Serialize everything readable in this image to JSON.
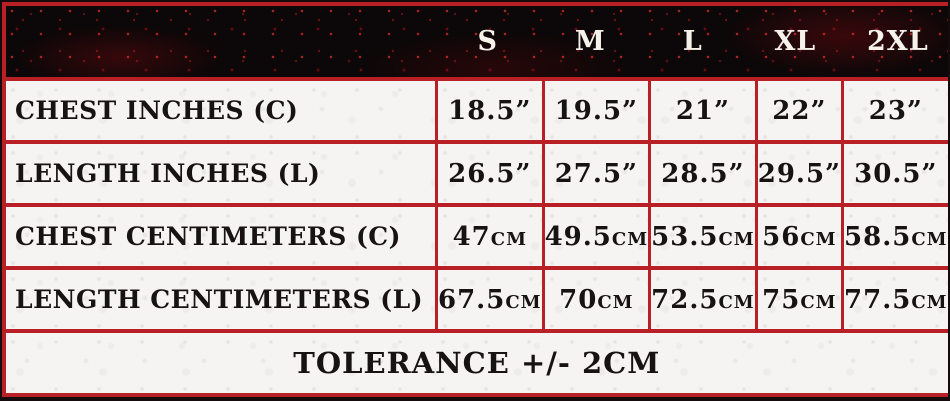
{
  "chart_data": {
    "type": "table",
    "title": "Apparel size chart",
    "columns": [
      "",
      "S",
      "M",
      "L",
      "XL",
      "2XL"
    ],
    "rows": [
      {
        "label": "CHEST INCHES (C)",
        "values": [
          "18.5”",
          "19.5”",
          "21”",
          "22”",
          "23”"
        ]
      },
      {
        "label": "LENGTH INCHES (L)",
        "values": [
          "26.5”",
          "27.5”",
          "28.5”",
          "29.5”",
          "30.5”"
        ]
      },
      {
        "label": "CHEST CENTIMETERS (C)",
        "values": [
          "47cm",
          "49.5cm",
          "53.5cm",
          "56cm",
          "58.5cm"
        ]
      },
      {
        "label": "LENGTH CENTIMETERS (L)",
        "values": [
          "67.5cm",
          "70cm",
          "72.5cm",
          "75cm",
          "77.5cm"
        ]
      }
    ],
    "footer": "TOLERANCE +/- 2CM"
  },
  "colors": {
    "border-red": "#b92025",
    "header-bg": "#0c0708",
    "cell-bg": "#f5f4f2",
    "header-text": "#f6f2ea",
    "body-text": "#161312",
    "frame-black": "#150b0c"
  }
}
